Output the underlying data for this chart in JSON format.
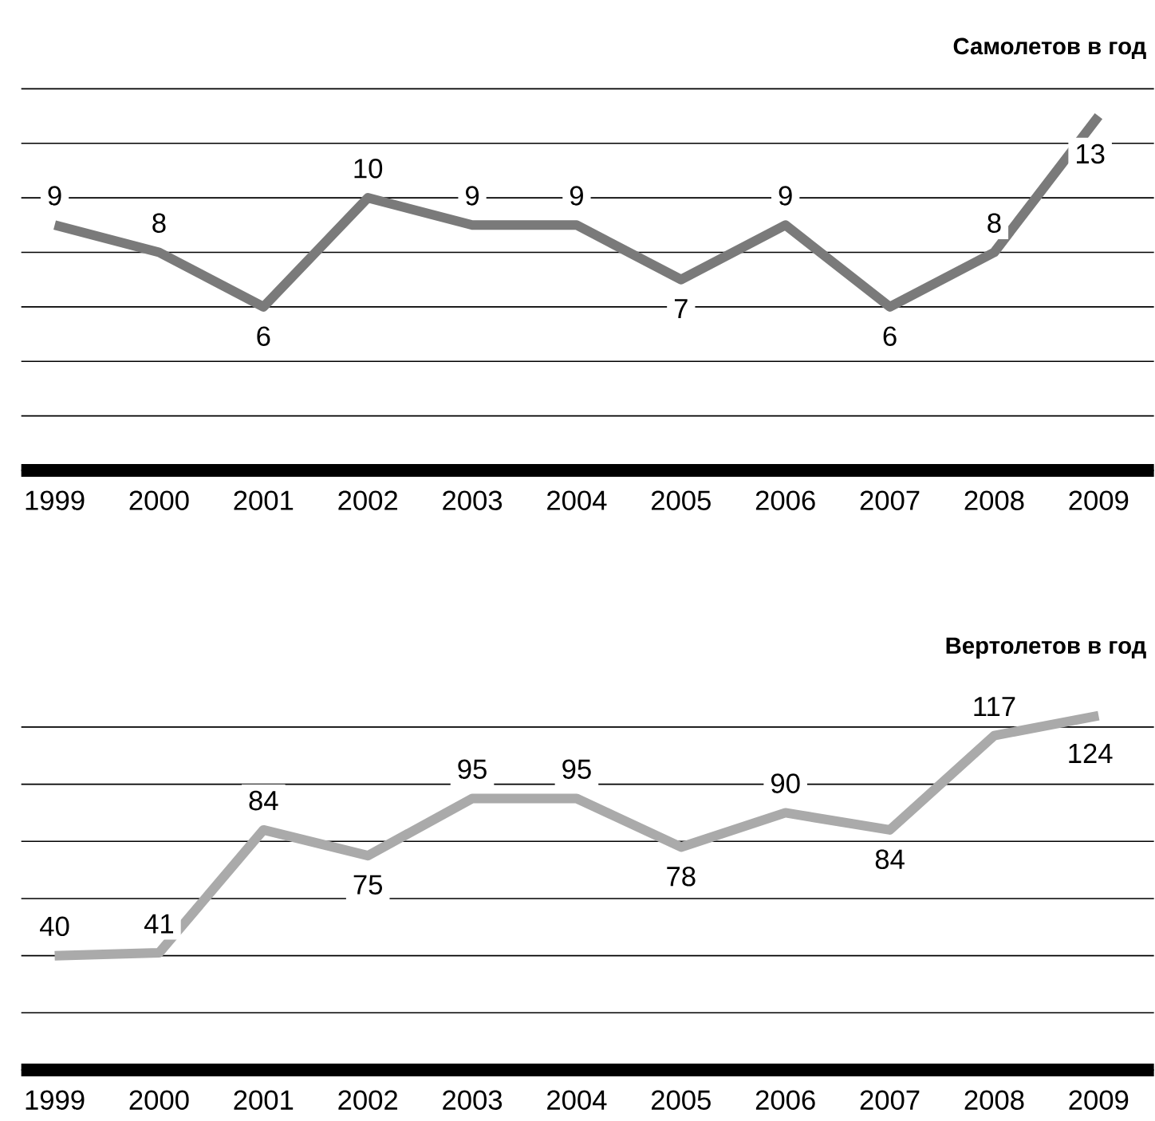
{
  "chart_data": [
    {
      "type": "line",
      "title": "Самолетов в год",
      "categories": [
        "1999",
        "2000",
        "2001",
        "2002",
        "2003",
        "2004",
        "2005",
        "2006",
        "2007",
        "2008",
        "2009"
      ],
      "values": [
        9,
        8,
        6,
        10,
        9,
        9,
        7,
        9,
        6,
        8,
        13
      ],
      "color": "#7a7a7a",
      "data_labels": true,
      "grid": "y",
      "tick_labels": "x",
      "marker": "none",
      "line_style": "solid"
    },
    {
      "type": "line",
      "title": "Вертолетов в год",
      "categories": [
        "1999",
        "2000",
        "2001",
        "2002",
        "2003",
        "2004",
        "2005",
        "2006",
        "2007",
        "2008",
        "2009"
      ],
      "values": [
        40,
        41,
        84,
        75,
        95,
        95,
        78,
        90,
        84,
        117,
        124
      ],
      "color": "#aaaaaa",
      "data_labels": true,
      "grid": "y",
      "tick_labels": "x",
      "marker": "none",
      "line_style": "solid"
    }
  ]
}
